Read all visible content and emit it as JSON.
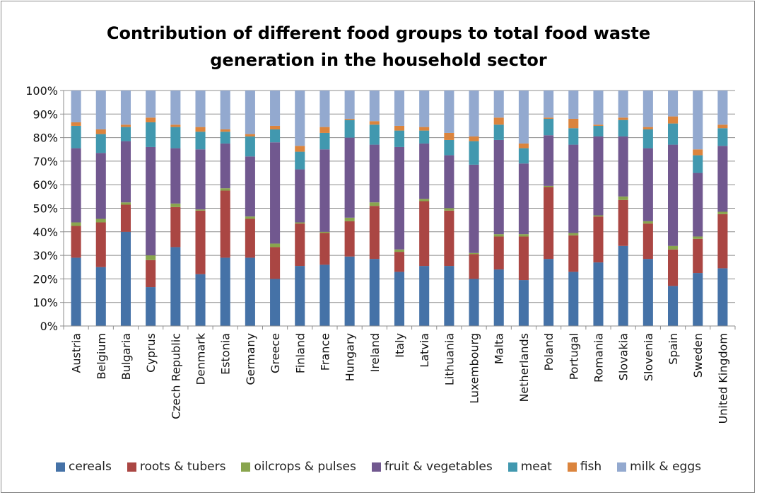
{
  "chart_data": {
    "type": "bar",
    "stacked": "percent",
    "title": "Contribution of different food groups to total food waste generation in the household sector",
    "title_lines": [
      "Contribution of different food groups to total food waste",
      "generation in the household sector"
    ],
    "xlabel": "",
    "ylabel": "",
    "ylim": [
      0,
      100
    ],
    "yticks": [
      "0%",
      "10%",
      "20%",
      "30%",
      "40%",
      "50%",
      "60%",
      "70%",
      "80%",
      "90%",
      "100%"
    ],
    "grid": true,
    "legend_position": "bottom",
    "categories": [
      "Austria",
      "Belgium",
      "Bulgaria",
      "Cyprus",
      "Czech Republic",
      "Denmark",
      "Estonia",
      "Germany",
      "Greece",
      "Finland",
      "France",
      "Hungary",
      "Ireland",
      "Italy",
      "Latvia",
      "Lithuania",
      "Luxembourg",
      "Malta",
      "Netherlands",
      "Poland",
      "Portugal",
      "Romania",
      "Slovakia",
      "Slovenia",
      "Spain",
      "Sweden",
      "United Kingdom"
    ],
    "series": [
      {
        "name": "cereals",
        "color": "#4572a7",
        "values": [
          29,
          25,
          40,
          16.5,
          33.5,
          22,
          29,
          29,
          20,
          25.5,
          26,
          29.5,
          28.5,
          23,
          25.5,
          25.5,
          20,
          24,
          19.5,
          28.5,
          23,
          27,
          34,
          28.5,
          17,
          22.5,
          24.5
        ]
      },
      {
        "name": "roots & tubers",
        "color": "#aa4643",
        "values": [
          13.5,
          19,
          11.5,
          11.5,
          17,
          27,
          28.5,
          16.5,
          13.5,
          18,
          13.5,
          15,
          22.5,
          8.5,
          27.5,
          23.5,
          10.5,
          14,
          18.5,
          30.5,
          15.5,
          19.5,
          19.5,
          15,
          15.5,
          14.5,
          23
        ]
      },
      {
        "name": "oilcrops & pulses",
        "color": "#89a54e",
        "values": [
          1.5,
          1.5,
          1,
          2,
          1.5,
          0.5,
          1,
          1,
          1.5,
          0.5,
          0.5,
          1.5,
          1.5,
          1,
          1,
          1,
          0.5,
          1,
          1,
          0.5,
          1,
          0.5,
          1.5,
          1,
          1.5,
          1,
          1
        ]
      },
      {
        "name": "fruit & vegetables",
        "color": "#71588f",
        "values": [
          31.5,
          28,
          26,
          46,
          23.5,
          25.5,
          19,
          25.5,
          43,
          22.5,
          35,
          34,
          24.5,
          43.5,
          23.5,
          22.5,
          37.5,
          40,
          30,
          21.5,
          37.5,
          33.5,
          25.5,
          31,
          43,
          27,
          28
        ]
      },
      {
        "name": "meat",
        "color": "#4198af",
        "values": [
          9.5,
          8,
          6,
          10.5,
          9,
          7.5,
          5,
          8.5,
          5.5,
          7.5,
          7,
          7.5,
          8.5,
          7,
          5.5,
          6.5,
          10,
          6.5,
          6.5,
          7,
          7,
          4.5,
          7,
          8,
          9,
          7.5,
          7.5
        ]
      },
      {
        "name": "fish",
        "color": "#db843d",
        "values": [
          1.5,
          2,
          1,
          2,
          1,
          2,
          1,
          1,
          1.5,
          2.5,
          2.5,
          0.5,
          1.5,
          2,
          1.5,
          3,
          2,
          3,
          2,
          0.5,
          4,
          0.5,
          1,
          1,
          3,
          2.5,
          1.5
        ]
      },
      {
        "name": "milk & eggs",
        "color": "#93a9cf",
        "values": [
          13.5,
          16.5,
          14.5,
          11.5,
          14.5,
          15.5,
          16.5,
          18.5,
          15,
          23.5,
          15.5,
          12,
          13,
          15,
          15.5,
          18,
          19.5,
          11.5,
          22.5,
          11.5,
          12,
          14.5,
          11.5,
          15.5,
          11,
          25,
          14.5
        ]
      }
    ]
  }
}
